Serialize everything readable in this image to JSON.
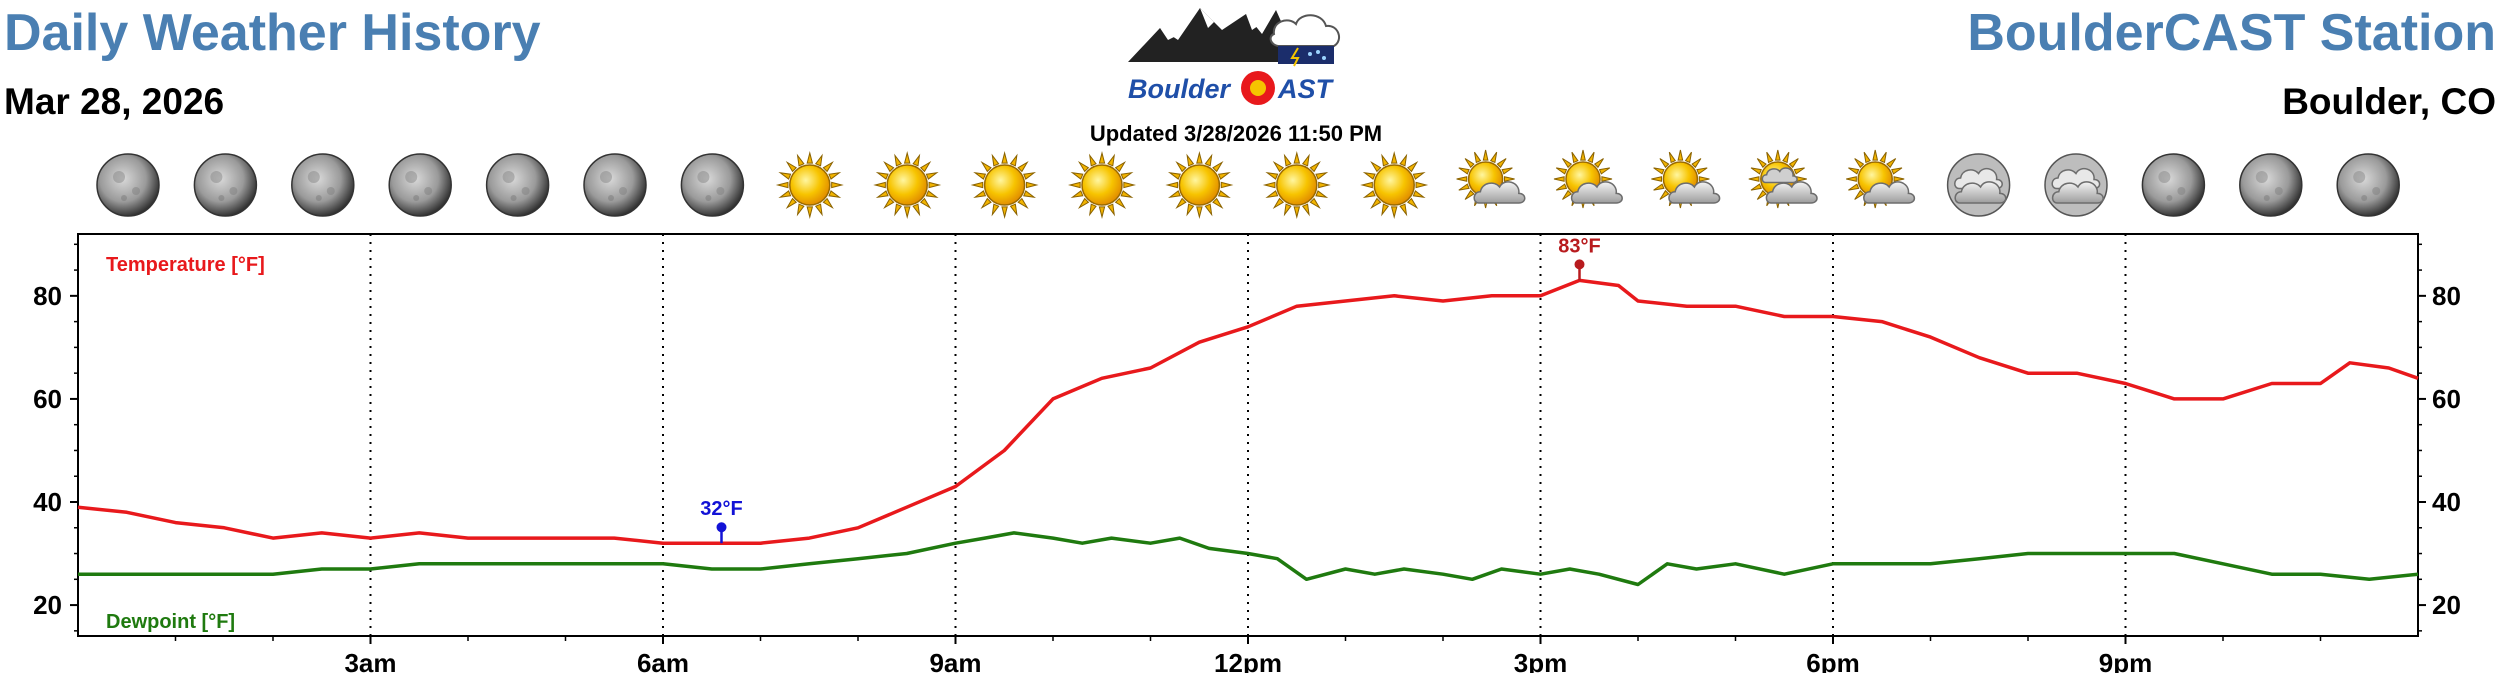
{
  "header": {
    "title": "Daily Weather History",
    "date": "Mar 28, 2026",
    "station": "BoulderCAST Station",
    "location": "Boulder, CO",
    "updated": "Updated 3/28/2026 11:50 PM",
    "logo": {
      "word_left": "Boulder",
      "word_right": "AST",
      "emblem_letter": "C"
    }
  },
  "colors": {
    "title_blue": "#4a7fb2",
    "temperature": "#e8191c",
    "dewpoint": "#1f7a0f",
    "min_marker": "#1212d6",
    "max_marker": "#b81b1e"
  },
  "sky_icons": [
    "moon",
    "moon",
    "moon",
    "moon",
    "moon",
    "moon",
    "moon",
    "sun",
    "sun",
    "sun",
    "sun",
    "sun",
    "sun",
    "sun",
    "sun-cloud",
    "sun-cloud",
    "sun-cloud",
    "sun-cloud-rain",
    "sun-cloud",
    "cloud-overcast",
    "cloud-overcast",
    "moon",
    "moon",
    "moon"
  ],
  "chart_data": {
    "type": "line",
    "x_unit": "hours after midnight, Mar 28, 2026",
    "xlim": [
      0,
      24
    ],
    "ylim": [
      14,
      92
    ],
    "yticks": [
      20,
      40,
      60,
      80
    ],
    "xticks": [
      {
        "x": 3,
        "label": "3am"
      },
      {
        "x": 6,
        "label": "6am"
      },
      {
        "x": 9,
        "label": "9am"
      },
      {
        "x": 12,
        "label": "12pm"
      },
      {
        "x": 15,
        "label": "3pm"
      },
      {
        "x": 18,
        "label": "6pm"
      },
      {
        "x": 21,
        "label": "9pm"
      }
    ],
    "grid": "vertical dotted at tick hours",
    "series": [
      {
        "name": "Temperature [°F]",
        "color": "#e8191c",
        "x": [
          0,
          0.5,
          1,
          1.5,
          2,
          2.5,
          3,
          3.5,
          4,
          4.5,
          5,
          5.5,
          6,
          6.5,
          6.6,
          7,
          7.5,
          8,
          8.5,
          9,
          9.5,
          10,
          10.5,
          11,
          11.5,
          12,
          12.5,
          13,
          13.5,
          14,
          14.5,
          15,
          15.4,
          15.8,
          16,
          16.5,
          17,
          17.5,
          18,
          18.5,
          19,
          19.5,
          20,
          20.5,
          21,
          21.5,
          22,
          22.5,
          23,
          23.3,
          23.7,
          24
        ],
        "y": [
          39,
          38,
          36,
          35,
          33,
          34,
          33,
          34,
          33,
          33,
          33,
          33,
          32,
          32,
          32,
          32,
          33,
          35,
          39,
          43,
          50,
          60,
          64,
          66,
          71,
          74,
          78,
          79,
          80,
          79,
          80,
          80,
          83,
          82,
          79,
          78,
          78,
          76,
          76,
          75,
          72,
          68,
          65,
          65,
          63,
          60,
          60,
          63,
          63,
          67,
          66,
          64
        ]
      },
      {
        "name": "Dewpoint [°F]",
        "color": "#1f7a0f",
        "x": [
          0,
          0.5,
          1,
          1.5,
          2,
          2.5,
          3,
          3.5,
          4,
          4.5,
          5,
          5.5,
          6,
          6.5,
          7,
          7.5,
          8,
          8.5,
          9,
          9.3,
          9.6,
          10,
          10.3,
          10.6,
          11,
          11.3,
          11.6,
          12,
          12.3,
          12.6,
          13,
          13.3,
          13.6,
          14,
          14.3,
          14.6,
          15,
          15.3,
          15.6,
          16,
          16.3,
          16.6,
          17,
          17.5,
          18,
          18.5,
          19,
          19.5,
          20,
          20.5,
          21,
          21.5,
          22,
          22.5,
          23,
          23.5,
          24
        ],
        "y": [
          26,
          26,
          26,
          26,
          26,
          27,
          27,
          28,
          28,
          28,
          28,
          28,
          28,
          27,
          27,
          28,
          29,
          30,
          32,
          33,
          34,
          33,
          32,
          33,
          32,
          33,
          31,
          30,
          29,
          25,
          27,
          26,
          27,
          26,
          25,
          27,
          26,
          27,
          26,
          24,
          28,
          27,
          28,
          26,
          28,
          28,
          28,
          29,
          30,
          30,
          30,
          30,
          28,
          26,
          26,
          25,
          26
        ]
      }
    ],
    "annotations": [
      {
        "label": "32°F",
        "x": 6.6,
        "y": 32,
        "kind": "min"
      },
      {
        "label": "83°F",
        "x": 15.4,
        "y": 83,
        "kind": "max"
      }
    ]
  }
}
